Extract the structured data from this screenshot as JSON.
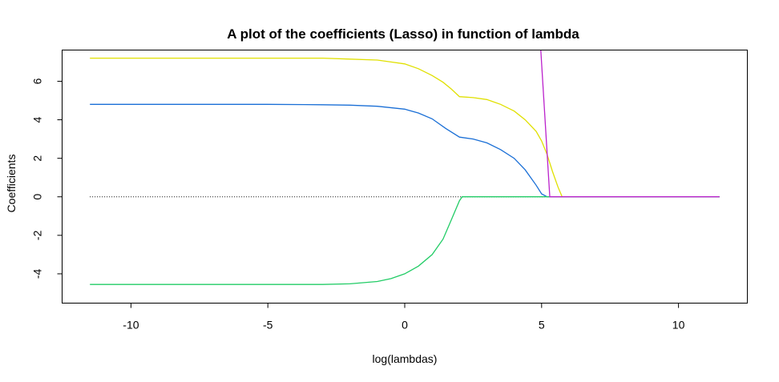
{
  "chart_data": {
    "type": "line",
    "title": "A plot of the coefficients (Lasso) in function of lambda",
    "xlabel": "log(lambdas)",
    "ylabel": "Coefficients",
    "xlim": [
      -12.5,
      12.5
    ],
    "ylim": [
      -5.5,
      7.6
    ],
    "xticks": [
      -10,
      -5,
      0,
      5,
      10
    ],
    "xtick_labels": [
      "-10",
      "-5",
      "0",
      "5",
      "10"
    ],
    "yticks": [
      -4,
      -2,
      0,
      2,
      4,
      6
    ],
    "ytick_labels": [
      "-4",
      "-2",
      "0",
      "2",
      "4",
      "6"
    ],
    "grid": false,
    "legend": "none",
    "reference_line": {
      "y": 0,
      "x_range": [
        -11.5,
        11.5
      ],
      "style": "dotted",
      "color": "#000000"
    },
    "series": [
      {
        "color": "#e0e000",
        "x": [
          -11.5,
          -8,
          -5,
          -3,
          -2,
          -1,
          -0.5,
          0,
          0.5,
          1,
          1.4,
          1.7,
          2,
          2.5,
          3,
          3.5,
          4,
          4.4,
          4.8,
          5,
          5.2,
          5.4,
          5.6,
          5.75,
          6,
          8,
          10,
          11.5
        ],
        "y": [
          7.2,
          7.2,
          7.2,
          7.2,
          7.15,
          7.1,
          7.0,
          6.9,
          6.65,
          6.3,
          5.95,
          5.6,
          5.2,
          5.15,
          5.05,
          4.8,
          4.45,
          4.0,
          3.4,
          2.9,
          2.2,
          1.3,
          0.5,
          0.0,
          0,
          0,
          0,
          0
        ]
      },
      {
        "color": "#1a6fd6",
        "x": [
          -11.5,
          -8,
          -5,
          -3,
          -2,
          -1,
          0,
          0.5,
          1,
          1.5,
          2,
          2.5,
          3,
          3.5,
          4,
          4.4,
          4.8,
          5.0,
          5.2,
          5.3,
          6,
          8,
          10,
          11.5
        ],
        "y": [
          4.8,
          4.8,
          4.8,
          4.78,
          4.76,
          4.7,
          4.55,
          4.35,
          4.05,
          3.55,
          3.1,
          3.0,
          2.8,
          2.45,
          2.0,
          1.4,
          0.6,
          0.15,
          0.0,
          0.0,
          0,
          0,
          0,
          0
        ]
      },
      {
        "color": "#22cc66",
        "x": [
          -11.5,
          -8,
          -5,
          -3,
          -2,
          -1,
          -0.5,
          0,
          0.5,
          1,
          1.4,
          1.7,
          2,
          2.1,
          3,
          5,
          8,
          11.5
        ],
        "y": [
          -4.55,
          -4.55,
          -4.55,
          -4.55,
          -4.52,
          -4.4,
          -4.25,
          -4.0,
          -3.6,
          -3.0,
          -2.2,
          -1.2,
          -0.2,
          0.0,
          0,
          0,
          0,
          0
        ]
      },
      {
        "color": "#bb22cc",
        "x": [
          4.97,
          5.3,
          6,
          8,
          10,
          11.5
        ],
        "y": [
          7.6,
          0.0,
          0,
          0,
          0,
          0
        ]
      }
    ]
  }
}
